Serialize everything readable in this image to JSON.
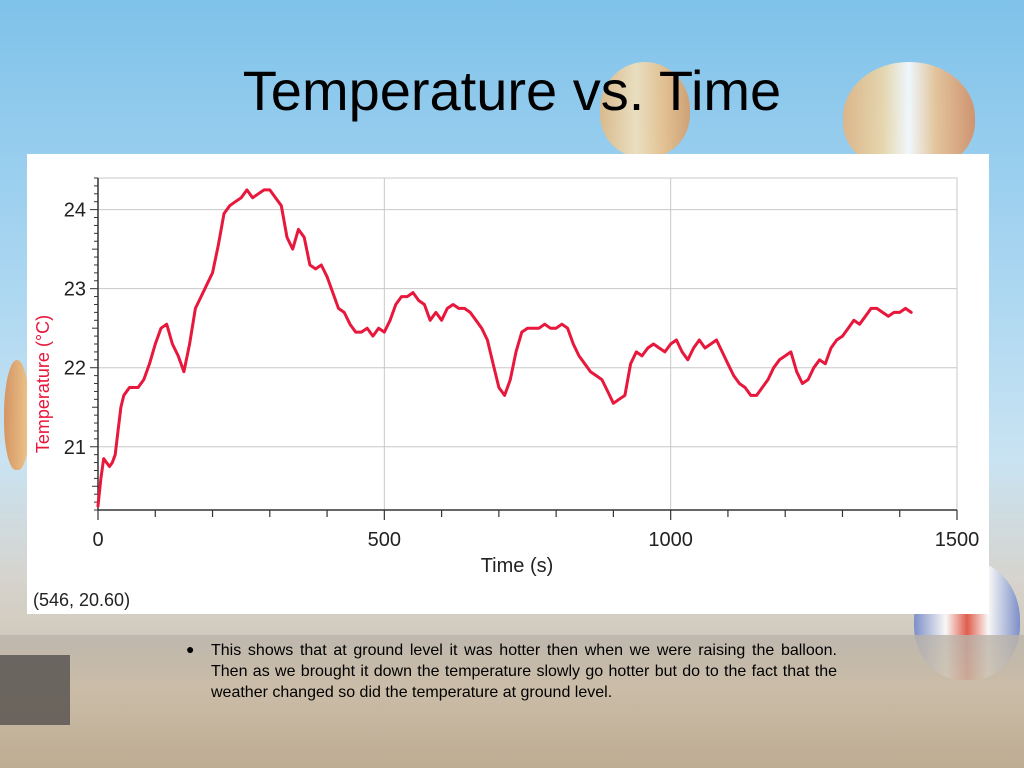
{
  "slide": {
    "title": "Temperature vs. Time",
    "bullet": "This shows that at ground level it was hotter then when we were raising the  balloon. Then as we brought it down the temperature slowly go hotter but do to the fact that the weather changed so did the temperature at ground level."
  },
  "readout": "(546, 20.60)",
  "colors": {
    "line": "#e8173c",
    "ylabel": "#e8173c",
    "grid": "#c8c8c8",
    "sky_top": "#7fc2ea"
  },
  "chart_data": {
    "type": "line",
    "title": "",
    "xlabel": "Time (s)",
    "ylabel": "Temperature (°C)",
    "xlim": [
      0,
      1500
    ],
    "ylim": [
      20.2,
      24.4
    ],
    "x_ticks": [
      0,
      500,
      1000,
      1500
    ],
    "y_ticks": [
      21,
      22,
      23,
      24
    ],
    "grid": true,
    "series": [
      {
        "name": "",
        "x": [
          0,
          5,
          10,
          15,
          20,
          25,
          30,
          35,
          40,
          45,
          55,
          70,
          80,
          90,
          100,
          110,
          120,
          130,
          140,
          150,
          160,
          170,
          180,
          190,
          200,
          210,
          220,
          230,
          240,
          250,
          260,
          270,
          280,
          290,
          300,
          310,
          320,
          330,
          340,
          350,
          360,
          370,
          380,
          390,
          400,
          410,
          420,
          430,
          440,
          450,
          460,
          470,
          480,
          490,
          500,
          510,
          520,
          530,
          540,
          550,
          560,
          570,
          580,
          590,
          600,
          610,
          620,
          630,
          640,
          650,
          660,
          670,
          680,
          690,
          700,
          710,
          720,
          730,
          740,
          750,
          760,
          770,
          780,
          790,
          800,
          810,
          820,
          830,
          840,
          850,
          860,
          870,
          880,
          890,
          900,
          910,
          920,
          930,
          940,
          950,
          960,
          970,
          980,
          990,
          1000,
          1010,
          1020,
          1030,
          1040,
          1050,
          1060,
          1070,
          1080,
          1090,
          1100,
          1110,
          1120,
          1130,
          1140,
          1150,
          1160,
          1170,
          1180,
          1190,
          1200,
          1210,
          1220,
          1230,
          1240,
          1250,
          1260,
          1270,
          1280,
          1290,
          1300,
          1310,
          1320,
          1330,
          1340,
          1350,
          1360,
          1370,
          1380,
          1390,
          1400,
          1410,
          1420
        ],
        "values": [
          20.25,
          20.6,
          20.85,
          20.8,
          20.75,
          20.8,
          20.9,
          21.2,
          21.5,
          21.65,
          21.75,
          21.75,
          21.85,
          22.05,
          22.3,
          22.5,
          22.55,
          22.3,
          22.15,
          21.95,
          22.3,
          22.75,
          22.9,
          23.05,
          23.2,
          23.55,
          23.95,
          24.05,
          24.1,
          24.15,
          24.25,
          24.15,
          24.2,
          24.25,
          24.25,
          24.15,
          24.05,
          23.65,
          23.5,
          23.75,
          23.65,
          23.3,
          23.25,
          23.3,
          23.15,
          22.95,
          22.75,
          22.7,
          22.55,
          22.45,
          22.45,
          22.5,
          22.4,
          22.5,
          22.45,
          22.6,
          22.8,
          22.9,
          22.9,
          22.95,
          22.85,
          22.8,
          22.6,
          22.7,
          22.6,
          22.75,
          22.8,
          22.75,
          22.75,
          22.7,
          22.6,
          22.5,
          22.35,
          22.05,
          21.75,
          21.65,
          21.85,
          22.2,
          22.45,
          22.5,
          22.5,
          22.5,
          22.55,
          22.5,
          22.5,
          22.55,
          22.5,
          22.3,
          22.15,
          22.05,
          21.95,
          21.9,
          21.85,
          21.7,
          21.55,
          21.6,
          21.65,
          22.05,
          22.2,
          22.15,
          22.25,
          22.3,
          22.25,
          22.2,
          22.3,
          22.35,
          22.2,
          22.1,
          22.25,
          22.35,
          22.25,
          22.3,
          22.35,
          22.2,
          22.05,
          21.9,
          21.8,
          21.75,
          21.65,
          21.65,
          21.75,
          21.85,
          22.0,
          22.1,
          22.15,
          22.2,
          21.95,
          21.8,
          21.85,
          22.0,
          22.1,
          22.05,
          22.25,
          22.35,
          22.4,
          22.5,
          22.6,
          22.55,
          22.65,
          22.75,
          22.75,
          22.7,
          22.65,
          22.7,
          22.7,
          22.75,
          22.7
        ]
      }
    ]
  }
}
